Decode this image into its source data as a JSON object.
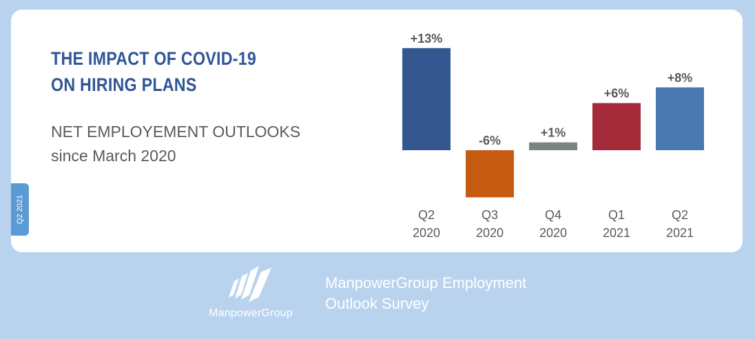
{
  "side_tab": "Q2 2021",
  "title_lines": [
    "THE IMPACT OF COVID-19",
    "ON HIRING PLANS"
  ],
  "subtitle_lines": [
    "NET EMPLOYEMENT OUTLOOKS",
    "since March 2020"
  ],
  "chart_data": {
    "type": "bar",
    "categories": [
      [
        "Q2",
        "2020"
      ],
      [
        "Q3",
        "2020"
      ],
      [
        "Q4",
        "2020"
      ],
      [
        "Q1",
        "2021"
      ],
      [
        "Q2",
        "2021"
      ]
    ],
    "values": [
      13,
      -6,
      1,
      6,
      8
    ],
    "data_labels": [
      "+13%",
      "-6%",
      "+1%",
      "+6%",
      "+8%"
    ],
    "colors": [
      "#35578f",
      "#c55a11",
      "#7b8580",
      "#a52a3a",
      "#4a78b0"
    ],
    "ylim": [
      -6,
      13
    ],
    "grid": false,
    "bar_icon": "face-mask-icon"
  },
  "logo": {
    "name": "ManpowerGroup",
    "icon": "manpowergroup-logo-icon"
  },
  "footer_lines": [
    "ManpowerGroup Employment",
    "Outlook Survey"
  ]
}
